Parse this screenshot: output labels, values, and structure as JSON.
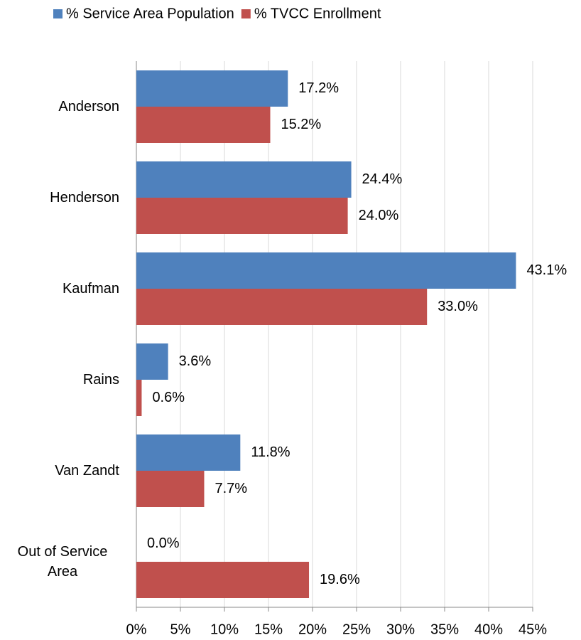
{
  "chart_data": {
    "type": "hbar",
    "categories": [
      "Anderson",
      "Henderson",
      "Kaufman",
      "Rains",
      "Van Zandt",
      "Out of Service Area"
    ],
    "series": [
      {
        "name": "% Service Area Population",
        "color": "#4f81bd",
        "values": [
          17.2,
          24.4,
          43.1,
          3.6,
          11.8,
          0.0
        ],
        "value_labels": [
          "17.2%",
          "24.4%",
          "43.1%",
          "3.6%",
          "11.8%",
          "0.0%"
        ]
      },
      {
        "name": "% TVCC Enrollment",
        "color": "#c0504d",
        "values": [
          15.2,
          24.0,
          33.0,
          0.6,
          7.7,
          19.6
        ],
        "value_labels": [
          "15.2%",
          "24.0%",
          "33.0%",
          "0.6%",
          "7.7%",
          "19.6%"
        ]
      }
    ],
    "xlim": [
      0,
      45
    ],
    "xticks": [
      {
        "value": 0,
        "label": "0%"
      },
      {
        "value": 5,
        "label": "5%"
      },
      {
        "value": 10,
        "label": "10%"
      },
      {
        "value": 15,
        "label": "15%"
      },
      {
        "value": 20,
        "label": "20%"
      },
      {
        "value": 25,
        "label": "25%"
      },
      {
        "value": 30,
        "label": "30%"
      },
      {
        "value": 35,
        "label": "35%"
      },
      {
        "value": 40,
        "label": "40%"
      },
      {
        "value": 45,
        "label": "45%"
      }
    ],
    "grid": true,
    "legend": "top"
  }
}
